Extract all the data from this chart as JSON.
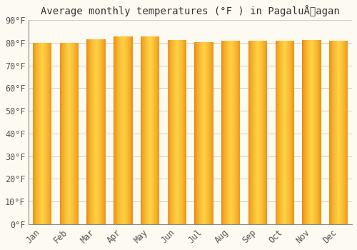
{
  "title": "Average monthly temperatures (°F ) in PagaluÅagan",
  "months": [
    "Jan",
    "Feb",
    "Mar",
    "Apr",
    "May",
    "Jun",
    "Jul",
    "Aug",
    "Sep",
    "Oct",
    "Nov",
    "Dec"
  ],
  "values": [
    80.1,
    80.1,
    81.7,
    82.9,
    82.9,
    81.3,
    80.4,
    81.0,
    81.0,
    81.0,
    81.3,
    81.0
  ],
  "bar_color_left": "#E8860A",
  "bar_color_mid": "#FFD045",
  "bar_color_right": "#E8860A",
  "background_color": "#FDFAF2",
  "grid_color": "#CCCCCC",
  "text_color": "#555555",
  "ylim": [
    0,
    90
  ],
  "yticks": [
    0,
    10,
    20,
    30,
    40,
    50,
    60,
    70,
    80,
    90
  ],
  "title_fontsize": 10,
  "tick_fontsize": 8.5,
  "bar_width": 0.7
}
